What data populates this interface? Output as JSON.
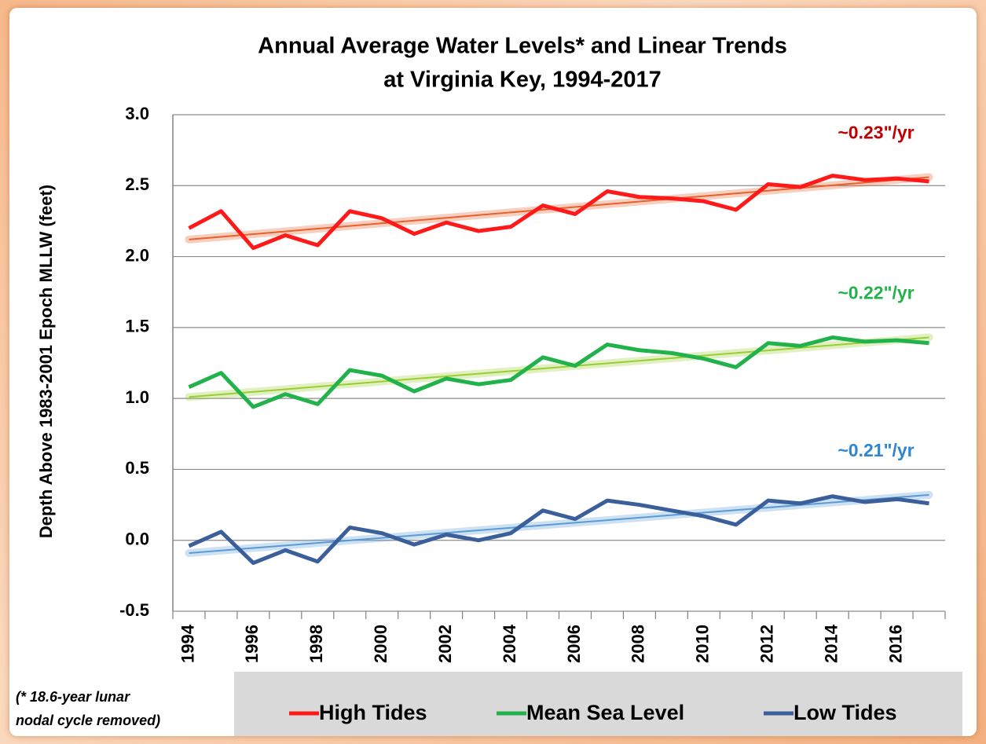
{
  "chart_data": {
    "type": "line",
    "title": [
      "Annual Average Water Levels* and Linear Trends",
      "at Virginia Key, 1994-2017"
    ],
    "y_label": "Depth Above 1983-2001 Epoch MLLW (feet)",
    "categories": [
      "1994",
      null,
      "1996",
      null,
      "1998",
      null,
      "2000",
      null,
      "2002",
      null,
      "2004",
      null,
      "2006",
      null,
      "2008",
      null,
      "2010",
      null,
      "2012",
      null,
      "2014",
      null,
      "2016",
      null
    ],
    "ylim": [
      -0.5,
      3.0
    ],
    "yticks": [
      {
        "value": -0.5,
        "label": "-0.5"
      },
      {
        "value": 0,
        "label": "0.0"
      },
      {
        "value": 0.5,
        "label": "0.5"
      },
      {
        "value": 1,
        "label": "1.0"
      },
      {
        "value": 1.5,
        "label": "1.5"
      },
      {
        "value": 2,
        "label": "2.0"
      },
      {
        "value": 2.5,
        "label": "2.5"
      },
      {
        "value": 3,
        "label": "3.0"
      }
    ],
    "grid": true,
    "series": [
      {
        "name": "High Tides",
        "color": "#ff1a1a",
        "trend_color": "#e8602c",
        "trend": [
          2.12,
          2.56
        ],
        "annotation": "~0.23\"/yr",
        "annotation_color": "#c00000",
        "values": [
          2.2,
          2.32,
          2.06,
          2.15,
          2.08,
          2.32,
          2.27,
          2.16,
          2.24,
          2.18,
          2.21,
          2.36,
          2.3,
          2.46,
          2.42,
          2.41,
          2.39,
          2.33,
          2.51,
          2.49,
          2.57,
          2.54,
          2.55,
          2.53
        ]
      },
      {
        "name": "Mean Sea Level",
        "color": "#22b24c",
        "trend_color": "#9acd32",
        "trend": [
          1.01,
          1.43
        ],
        "annotation": "~0.22\"/yr",
        "annotation_color": "#22b24c",
        "values": [
          1.08,
          1.18,
          0.94,
          1.03,
          0.96,
          1.2,
          1.16,
          1.05,
          1.14,
          1.1,
          1.13,
          1.29,
          1.23,
          1.38,
          1.34,
          1.32,
          1.28,
          1.22,
          1.39,
          1.37,
          1.43,
          1.4,
          1.41,
          1.39
        ]
      },
      {
        "name": "Low Tides",
        "color": "#3a5f9a",
        "trend_color": "#5b9bd5",
        "trend": [
          -0.09,
          0.32
        ],
        "annotation": "~0.21\"/yr",
        "annotation_color": "#2e86d0",
        "values": [
          -0.04,
          0.06,
          -0.16,
          -0.07,
          -0.15,
          0.09,
          0.05,
          -0.03,
          0.04,
          0.0,
          0.05,
          0.21,
          0.15,
          0.28,
          0.25,
          0.21,
          0.17,
          0.11,
          0.28,
          0.26,
          0.31,
          0.27,
          0.29,
          0.26
        ]
      }
    ],
    "note": [
      "(* 18.6-year lunar",
      "nodal cycle removed)"
    ]
  }
}
